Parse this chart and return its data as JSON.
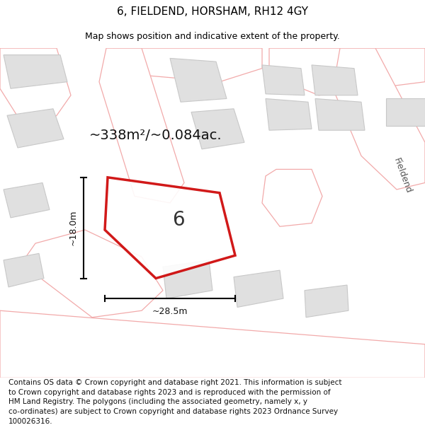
{
  "title": "6, FIELDEND, HORSHAM, RH12 4GY",
  "subtitle": "Map shows position and indicative extent of the property.",
  "footer_lines": [
    "Contains OS data © Crown copyright and database right 2021. This information is subject",
    "to Crown copyright and database rights 2023 and is reproduced with the permission of",
    "HM Land Registry. The polygons (including the associated geometry, namely x, y",
    "co-ordinates) are subject to Crown copyright and database rights 2023 Ordnance Survey",
    "100026316."
  ],
  "area_label": "~338m²/~0.084ac.",
  "width_label": "~28.5m",
  "height_label": "~18.0m",
  "property_number": "6",
  "bg_color": "#ffffff",
  "map_bg": "#f8f8f8",
  "building_color": "#e0e0e0",
  "building_edge": "#c8c8c8",
  "road_fill": "#ffffff",
  "road_stroke": "#f2aaaa",
  "property_stroke": "#cc0000",
  "title_fontsize": 11,
  "subtitle_fontsize": 9,
  "footer_fontsize": 7.5,
  "area_fontsize": 14,
  "dim_fontsize": 9,
  "num_fontsize": 20,
  "fieldend_fontsize": 9
}
